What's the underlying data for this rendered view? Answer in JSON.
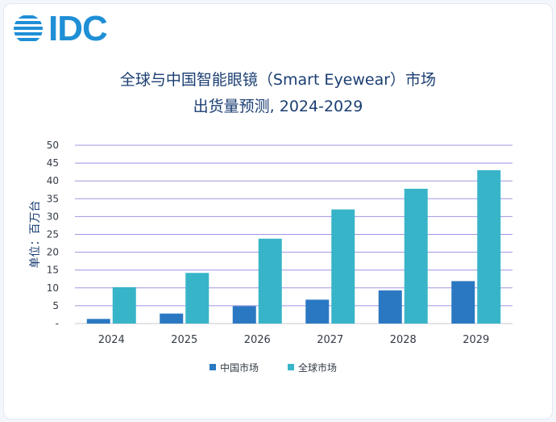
{
  "brand": {
    "logo_text": "IDC"
  },
  "colors": {
    "china": "#2b78c2",
    "global": "#38b4c9",
    "grid": "#9f95e4",
    "axis_text": "#333a46",
    "title": "#1b3e73"
  },
  "chart_data": {
    "type": "bar",
    "title": "全球与中国智能眼镜（Smart Eyewear）市场",
    "subtitle": "出货量预测, 2024-2029",
    "xlabel": "",
    "ylabel": "单位：百万台",
    "ylim": [
      0,
      50
    ],
    "yticks": [
      "-",
      "5",
      "10",
      "15",
      "20",
      "25",
      "30",
      "35",
      "40",
      "45",
      "50"
    ],
    "grid": true,
    "legend_position": "bottom",
    "categories": [
      "2024",
      "2025",
      "2026",
      "2027",
      "2028",
      "2029"
    ],
    "series": [
      {
        "name": "中国市场",
        "values": [
          1.3,
          2.8,
          4.9,
          6.7,
          9.3,
          11.9
        ]
      },
      {
        "name": "全球市场",
        "values": [
          10.2,
          14.2,
          23.8,
          32.0,
          37.8,
          43.0
        ]
      }
    ]
  }
}
